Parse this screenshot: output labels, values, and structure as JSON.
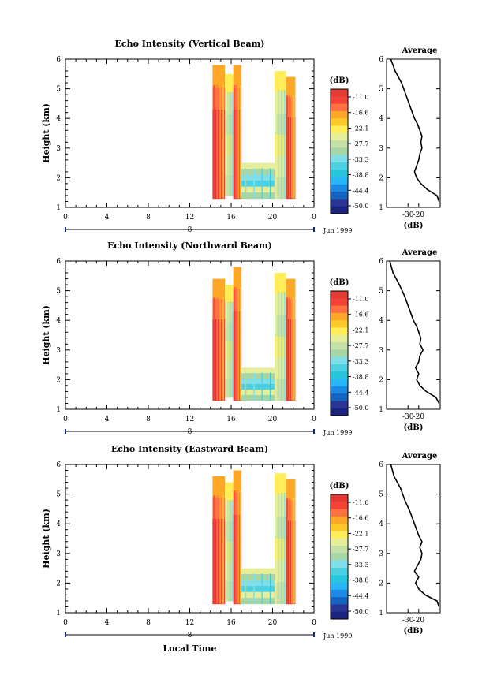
{
  "figure": {
    "xlabel": "Local Time",
    "date_label": "Jun 1999",
    "day_label": "8",
    "avg_title": "Average",
    "avg_xlabel": "(dB)",
    "cbar_unit": "(dB)"
  },
  "colors": {
    "scale": [
      "#1a237e",
      "#283593",
      "#1565c0",
      "#1e88e5",
      "#29b6f6",
      "#26c6da",
      "#4dd0e1",
      "#80deea",
      "#a5d6a7",
      "#c5e1a5",
      "#e6ee9c",
      "#ffee58",
      "#ffca28",
      "#ffa726",
      "#ff7043",
      "#f44336",
      "#e53935"
    ]
  },
  "chart_data": [
    {
      "type": "heatmap",
      "title": "Echo Intensity (Vertical Beam)",
      "ylabel": "Height (km)",
      "xlim": [
        0,
        24
      ],
      "ylim": [
        1,
        6
      ],
      "xticks": [
        "0",
        "4",
        "8",
        "12",
        "16",
        "20",
        "0"
      ],
      "yticks": [
        "1",
        "2",
        "3",
        "4",
        "5",
        "6"
      ],
      "colorbar_ticks": [
        "-11.0",
        "-16.6",
        "-22.1",
        "-27.7",
        "-33.3",
        "-38.8",
        "-44.4",
        "-50.0"
      ],
      "bands": [
        {
          "x": [
            14.2,
            15.4
          ],
          "y": [
            1.3,
            5.8
          ],
          "level": "high"
        },
        {
          "x": [
            15.4,
            16.2
          ],
          "y": [
            1.4,
            5.5
          ],
          "level": "mid"
        },
        {
          "x": [
            16.2,
            17.0
          ],
          "y": [
            1.3,
            5.8
          ],
          "level": "high"
        },
        {
          "x": [
            17.0,
            20.2
          ],
          "y": [
            1.3,
            2.5
          ],
          "level": "low"
        },
        {
          "x": [
            20.2,
            21.3
          ],
          "y": [
            1.3,
            5.6
          ],
          "level": "mid"
        },
        {
          "x": [
            21.3,
            22.2
          ],
          "y": [
            1.3,
            5.4
          ],
          "level": "high"
        }
      ],
      "average": {
        "xlim": [
          -50,
          0
        ],
        "xticks": [
          "-30",
          "-20"
        ],
        "profile": [
          [
            1.2,
            -1
          ],
          [
            1.4,
            -3
          ],
          [
            1.6,
            -12
          ],
          [
            1.8,
            -18
          ],
          [
            2.0,
            -22
          ],
          [
            2.2,
            -24
          ],
          [
            2.4,
            -22
          ],
          [
            2.6,
            -20
          ],
          [
            2.8,
            -19
          ],
          [
            3.0,
            -17
          ],
          [
            3.2,
            -18
          ],
          [
            3.4,
            -17
          ],
          [
            3.6,
            -19
          ],
          [
            3.8,
            -21
          ],
          [
            4.0,
            -24
          ],
          [
            4.4,
            -28
          ],
          [
            4.8,
            -32
          ],
          [
            5.2,
            -36
          ],
          [
            5.6,
            -42
          ],
          [
            6.0,
            -46
          ]
        ]
      }
    },
    {
      "type": "heatmap",
      "title": "Echo Intensity (Northward Beam)",
      "ylabel": "Height (km)",
      "xlim": [
        0,
        24
      ],
      "ylim": [
        1,
        6
      ],
      "xticks": [
        "0",
        "4",
        "8",
        "12",
        "16",
        "20",
        "0"
      ],
      "yticks": [
        "1",
        "2",
        "3",
        "4",
        "5",
        "6"
      ],
      "colorbar_ticks": [
        "-11.0",
        "-16.6",
        "-22.1",
        "-27.7",
        "-33.3",
        "-38.8",
        "-44.4",
        "-50.0"
      ],
      "bands": [
        {
          "x": [
            14.2,
            15.4
          ],
          "y": [
            1.3,
            5.4
          ],
          "level": "high"
        },
        {
          "x": [
            15.4,
            16.2
          ],
          "y": [
            1.4,
            5.2
          ],
          "level": "mid"
        },
        {
          "x": [
            16.2,
            17.0
          ],
          "y": [
            1.3,
            5.8
          ],
          "level": "high"
        },
        {
          "x": [
            17.0,
            20.2
          ],
          "y": [
            1.3,
            2.4
          ],
          "level": "low"
        },
        {
          "x": [
            20.2,
            21.3
          ],
          "y": [
            1.3,
            5.6
          ],
          "level": "mid"
        },
        {
          "x": [
            21.3,
            22.2
          ],
          "y": [
            1.3,
            5.4
          ],
          "level": "high"
        }
      ],
      "average": {
        "xlim": [
          -50,
          0
        ],
        "xticks": [
          "-30",
          "-20"
        ],
        "profile": [
          [
            1.2,
            -1
          ],
          [
            1.4,
            -4
          ],
          [
            1.6,
            -13
          ],
          [
            1.8,
            -19
          ],
          [
            2.0,
            -22
          ],
          [
            2.2,
            -20
          ],
          [
            2.4,
            -23
          ],
          [
            2.6,
            -20
          ],
          [
            2.8,
            -19
          ],
          [
            3.0,
            -16
          ],
          [
            3.2,
            -19
          ],
          [
            3.4,
            -18
          ],
          [
            3.6,
            -20
          ],
          [
            3.8,
            -22
          ],
          [
            4.0,
            -25
          ],
          [
            4.4,
            -29
          ],
          [
            4.8,
            -33
          ],
          [
            5.2,
            -38
          ],
          [
            5.6,
            -44
          ],
          [
            6.0,
            -47
          ]
        ]
      }
    },
    {
      "type": "heatmap",
      "title": "Echo Intensity (Eastward Beam)",
      "ylabel": "Height (km)",
      "xlim": [
        0,
        24
      ],
      "ylim": [
        1,
        6
      ],
      "xticks": [
        "0",
        "4",
        "8",
        "12",
        "16",
        "20",
        "0"
      ],
      "yticks": [
        "1",
        "2",
        "3",
        "4",
        "5",
        "6"
      ],
      "colorbar_ticks": [
        "-11.0",
        "-16.6",
        "-22.1",
        "-27.7",
        "-33.3",
        "-38.8",
        "-44.4",
        "-50.0"
      ],
      "bands": [
        {
          "x": [
            14.2,
            15.4
          ],
          "y": [
            1.3,
            5.6
          ],
          "level": "high"
        },
        {
          "x": [
            15.4,
            16.2
          ],
          "y": [
            1.4,
            5.4
          ],
          "level": "mid"
        },
        {
          "x": [
            16.2,
            17.0
          ],
          "y": [
            1.3,
            5.8
          ],
          "level": "high"
        },
        {
          "x": [
            17.0,
            20.2
          ],
          "y": [
            1.3,
            2.5
          ],
          "level": "low"
        },
        {
          "x": [
            20.2,
            21.3
          ],
          "y": [
            1.3,
            5.7
          ],
          "level": "mid"
        },
        {
          "x": [
            21.3,
            22.2
          ],
          "y": [
            1.3,
            5.5
          ],
          "level": "high"
        }
      ],
      "average": {
        "xlim": [
          -50,
          0
        ],
        "xticks": [
          "-30",
          "-20"
        ],
        "profile": [
          [
            1.2,
            -1
          ],
          [
            1.4,
            -3
          ],
          [
            1.6,
            -14
          ],
          [
            1.8,
            -20
          ],
          [
            2.0,
            -23
          ],
          [
            2.2,
            -20
          ],
          [
            2.4,
            -24
          ],
          [
            2.6,
            -21
          ],
          [
            2.8,
            -18
          ],
          [
            3.0,
            -17
          ],
          [
            3.2,
            -19
          ],
          [
            3.4,
            -17
          ],
          [
            3.6,
            -20
          ],
          [
            3.8,
            -22
          ],
          [
            4.0,
            -24
          ],
          [
            4.4,
            -28
          ],
          [
            4.8,
            -33
          ],
          [
            5.2,
            -37
          ],
          [
            5.6,
            -43
          ],
          [
            6.0,
            -46
          ]
        ]
      }
    }
  ]
}
